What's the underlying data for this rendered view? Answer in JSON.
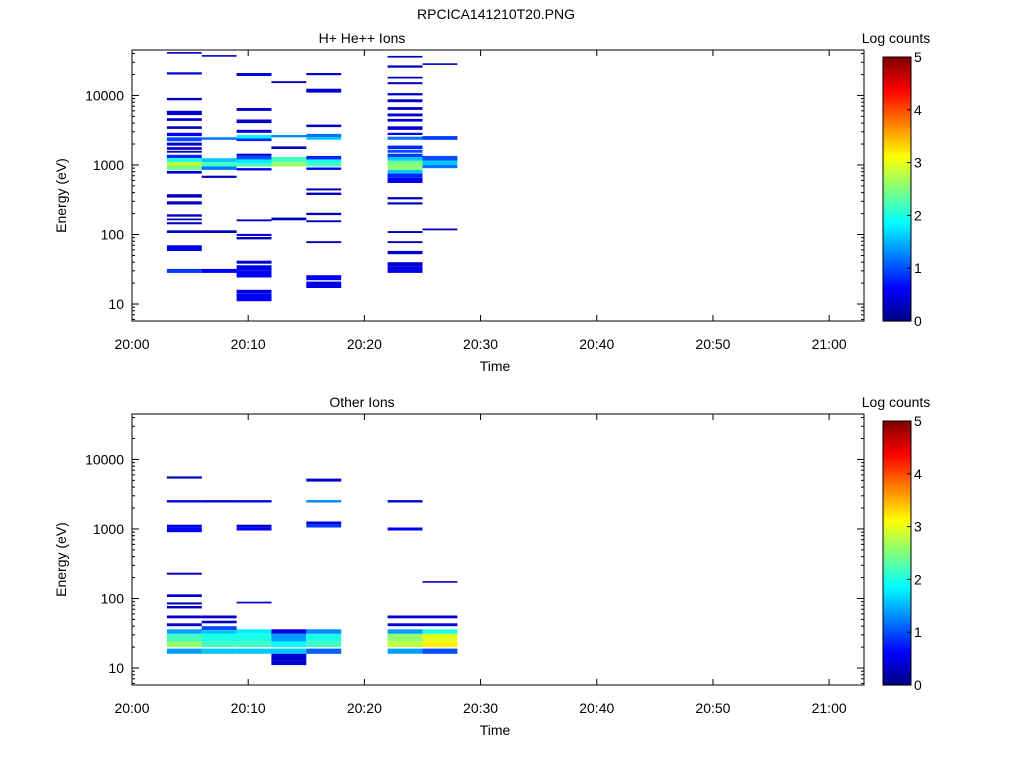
{
  "figure_title": "RPCICA141210T20.PNG",
  "chart_data": [
    {
      "type": "heatmap",
      "title": "H+ He++ Ions",
      "xlabel": "Time",
      "ylabel": "Energy (eV)",
      "x_range": [
        "20:00",
        "21:03"
      ],
      "x_ticks": [
        "20:00",
        "20:10",
        "20:20",
        "20:30",
        "20:40",
        "20:50",
        "21:00"
      ],
      "y_scale": "log",
      "y_range": [
        5.7,
        45000
      ],
      "y_ticks": [
        "10",
        "100",
        "1000",
        "10000"
      ],
      "colorbar": {
        "label": "Log counts",
        "range": [
          0,
          5
        ],
        "ticks": [
          "0",
          "1",
          "2",
          "3",
          "4",
          "5"
        ],
        "colormap": "jet"
      },
      "time_bins": [
        {
          "start": "20:03",
          "end": "20:06",
          "cells": [
            [
              40000,
              42000,
              0.3
            ],
            [
              20000,
              21500,
              0.4
            ],
            [
              8500,
              9200,
              0.3
            ],
            [
              5200,
              6000,
              0.4
            ],
            [
              4300,
              4700,
              0.4
            ],
            [
              3300,
              3600,
              0.3
            ],
            [
              2600,
              2900,
              0.6
            ],
            [
              2200,
              2500,
              1.0
            ],
            [
              1900,
              2100,
              0.4
            ],
            [
              1650,
              1800,
              0.3
            ],
            [
              1500,
              1600,
              0.3
            ],
            [
              1250,
              1400,
              0.8
            ],
            [
              1100,
              1250,
              2.0
            ],
            [
              950,
              1100,
              2.8
            ],
            [
              850,
              950,
              2.4
            ],
            [
              750,
              820,
              0.4
            ],
            [
              340,
              380,
              0.3
            ],
            [
              270,
              300,
              0.3
            ],
            [
              180,
              195,
              0.3
            ],
            [
              160,
              170,
              0.3
            ],
            [
              140,
              150,
              0.3
            ],
            [
              105,
              115,
              0.4
            ],
            [
              58,
              70,
              0.5
            ],
            [
              28,
              32,
              0.9
            ]
          ]
        },
        {
          "start": "20:06",
          "end": "20:09",
          "cells": [
            [
              36000,
              38000,
              0.3
            ],
            [
              2300,
              2500,
              1.2
            ],
            [
              1100,
              1250,
              1.6
            ],
            [
              950,
              1100,
              2.2
            ],
            [
              850,
              950,
              1.2
            ],
            [
              650,
              700,
              0.3
            ],
            [
              105,
              115,
              0.3
            ],
            [
              28,
              32,
              0.6
            ]
          ]
        },
        {
          "start": "20:09",
          "end": "20:12",
          "cells": [
            [
              19000,
              21000,
              0.5
            ],
            [
              6000,
              6600,
              0.4
            ],
            [
              4000,
              4500,
              0.4
            ],
            [
              2900,
              3200,
              0.4
            ],
            [
              2400,
              2700,
              1.8
            ],
            [
              2200,
              2400,
              0.8
            ],
            [
              1350,
              1450,
              0.4
            ],
            [
              1200,
              1350,
              1.0
            ],
            [
              1050,
              1200,
              1.8
            ],
            [
              950,
              1050,
              2.2
            ],
            [
              830,
              900,
              0.6
            ],
            [
              155,
              165,
              0.3
            ],
            [
              95,
              102,
              0.4
            ],
            [
              85,
              92,
              0.3
            ],
            [
              38,
              42,
              0.4
            ],
            [
              30,
              36,
              0.5
            ],
            [
              24,
              30,
              0.6
            ],
            [
              14,
              16,
              0.5
            ],
            [
              11,
              14,
              0.6
            ]
          ]
        },
        {
          "start": "20:12",
          "end": "20:15",
          "cells": [
            [
              15000,
              16000,
              0.3
            ],
            [
              2500,
              2700,
              1.3
            ],
            [
              1700,
              1850,
              0.3
            ],
            [
              1100,
              1300,
              2.2
            ],
            [
              950,
              1100,
              2.6
            ],
            [
              160,
              175,
              0.3
            ]
          ]
        },
        {
          "start": "20:15",
          "end": "20:18",
          "cells": [
            [
              19500,
              21000,
              0.4
            ],
            [
              11000,
              12500,
              0.4
            ],
            [
              3500,
              3800,
              0.3
            ],
            [
              2500,
              2800,
              1.2
            ],
            [
              2300,
              2500,
              1.6
            ],
            [
              1200,
              1350,
              0.8
            ],
            [
              1050,
              1200,
              2.0
            ],
            [
              950,
              1050,
              2.2
            ],
            [
              850,
              920,
              0.6
            ],
            [
              430,
              460,
              0.3
            ],
            [
              370,
              400,
              0.3
            ],
            [
              190,
              205,
              0.3
            ],
            [
              150,
              160,
              0.3
            ],
            [
              75,
              80,
              0.3
            ],
            [
              22,
              26,
              0.6
            ],
            [
              17,
              21,
              0.5
            ]
          ]
        },
        {
          "start": "20:22",
          "end": "20:25",
          "cells": [
            [
              35000,
              37000,
              0.3
            ],
            [
              25000,
              27000,
              0.3
            ],
            [
              17500,
              18500,
              0.3
            ],
            [
              14500,
              15500,
              0.3
            ],
            [
              10000,
              10800,
              0.4
            ],
            [
              8000,
              8800,
              0.4
            ],
            [
              6200,
              6800,
              0.4
            ],
            [
              5000,
              5500,
              0.4
            ],
            [
              4200,
              4600,
              0.4
            ],
            [
              3200,
              3600,
              0.4
            ],
            [
              2700,
              2900,
              0.6
            ],
            [
              2300,
              2550,
              1.2
            ],
            [
              1700,
              1900,
              0.8
            ],
            [
              1500,
              1650,
              1.0
            ],
            [
              1300,
              1450,
              0.9
            ],
            [
              1150,
              1300,
              1.6
            ],
            [
              1000,
              1150,
              2.4
            ],
            [
              850,
              1000,
              2.6
            ],
            [
              750,
              850,
              1.6
            ],
            [
              650,
              750,
              0.8
            ],
            [
              550,
              650,
              0.5
            ],
            [
              320,
              345,
              0.3
            ],
            [
              270,
              290,
              0.3
            ],
            [
              105,
              112,
              0.3
            ],
            [
              75,
              80,
              0.3
            ],
            [
              52,
              58,
              0.4
            ],
            [
              35,
              40,
              0.4
            ],
            [
              28,
              35,
              0.5
            ]
          ]
        },
        {
          "start": "20:25",
          "end": "20:28",
          "cells": [
            [
              27500,
              29000,
              0.3
            ],
            [
              2300,
              2600,
              0.9
            ],
            [
              1150,
              1350,
              1.0
            ],
            [
              1000,
              1150,
              1.6
            ],
            [
              900,
              1000,
              1.2
            ],
            [
              115,
              122,
              0.3
            ]
          ]
        }
      ]
    },
    {
      "type": "heatmap",
      "title": "Other Ions",
      "xlabel": "Time",
      "ylabel": "Energy (eV)",
      "x_range": [
        "20:00",
        "21:03"
      ],
      "x_ticks": [
        "20:00",
        "20:10",
        "20:20",
        "20:30",
        "20:40",
        "20:50",
        "21:00"
      ],
      "y_scale": "log",
      "y_range": [
        5.7,
        45000
      ],
      "y_ticks": [
        "10",
        "100",
        "1000",
        "10000"
      ],
      "colorbar": {
        "label": "Log counts",
        "range": [
          0,
          5
        ],
        "ticks": [
          "0",
          "1",
          "2",
          "3",
          "4",
          "5"
        ],
        "colormap": "jet"
      },
      "time_bins": [
        {
          "start": "20:03",
          "end": "20:06",
          "cells": [
            [
              5300,
              5700,
              0.3
            ],
            [
              2400,
              2600,
              0.5
            ],
            [
              1050,
              1150,
              0.5
            ],
            [
              900,
              1050,
              0.6
            ],
            [
              220,
              235,
              0.3
            ],
            [
              105,
              115,
              0.4
            ],
            [
              82,
              88,
              0.3
            ],
            [
              72,
              78,
              0.3
            ],
            [
              52,
              57,
              0.4
            ],
            [
              40,
              44,
              0.4
            ],
            [
              31,
              36,
              1.4
            ],
            [
              24,
              31,
              2.2
            ],
            [
              20,
              24,
              2.6
            ],
            [
              16,
              19,
              1.4
            ]
          ]
        },
        {
          "start": "20:06",
          "end": "20:09",
          "cells": [
            [
              2400,
              2600,
              0.4
            ],
            [
              52,
              57,
              0.4
            ],
            [
              44,
              48,
              0.4
            ],
            [
              35,
              40,
              1.0
            ],
            [
              31,
              35,
              1.6
            ],
            [
              24,
              31,
              2.0
            ],
            [
              20,
              24,
              2.2
            ],
            [
              16,
              19,
              1.6
            ]
          ]
        },
        {
          "start": "20:09",
          "end": "20:12",
          "cells": [
            [
              2400,
              2600,
              0.5
            ],
            [
              1050,
              1150,
              0.4
            ],
            [
              950,
              1050,
              0.6
            ],
            [
              85,
              90,
              0.3
            ],
            [
              31,
              36,
              1.8
            ],
            [
              24,
              31,
              2.0
            ],
            [
              20,
              24,
              2.2
            ],
            [
              16,
              19,
              1.6
            ]
          ]
        },
        {
          "start": "20:12",
          "end": "20:15",
          "cells": [
            [
              31,
              36,
              0.5
            ],
            [
              24,
              31,
              1.4
            ],
            [
              20,
              24,
              1.9
            ],
            [
              16,
              19,
              1.6
            ],
            [
              13,
              16,
              0.4
            ],
            [
              11,
              13,
              0.4
            ]
          ]
        },
        {
          "start": "20:15",
          "end": "20:18",
          "cells": [
            [
              4800,
              5300,
              0.4
            ],
            [
              2400,
              2600,
              1.3
            ],
            [
              1180,
              1280,
              0.4
            ],
            [
              1050,
              1180,
              0.9
            ],
            [
              31,
              36,
              1.3
            ],
            [
              24,
              31,
              2.0
            ],
            [
              20,
              24,
              2.2
            ],
            [
              16,
              19,
              1.1
            ]
          ]
        },
        {
          "start": "20:22",
          "end": "20:25",
          "cells": [
            [
              2400,
              2600,
              0.4
            ],
            [
              950,
              1050,
              0.6
            ],
            [
              52,
              57,
              0.4
            ],
            [
              40,
              44,
              0.4
            ],
            [
              31,
              36,
              1.4
            ],
            [
              24,
              31,
              2.6
            ],
            [
              20,
              24,
              2.8
            ],
            [
              16,
              19,
              1.4
            ]
          ]
        },
        {
          "start": "20:25",
          "end": "20:28",
          "cells": [
            [
              170,
              178,
              0.4
            ],
            [
              52,
              57,
              0.4
            ],
            [
              40,
              44,
              0.4
            ],
            [
              31,
              36,
              2.0
            ],
            [
              24,
              31,
              3.0
            ],
            [
              20,
              24,
              3.2
            ],
            [
              16,
              19,
              1.0
            ]
          ]
        }
      ]
    }
  ]
}
